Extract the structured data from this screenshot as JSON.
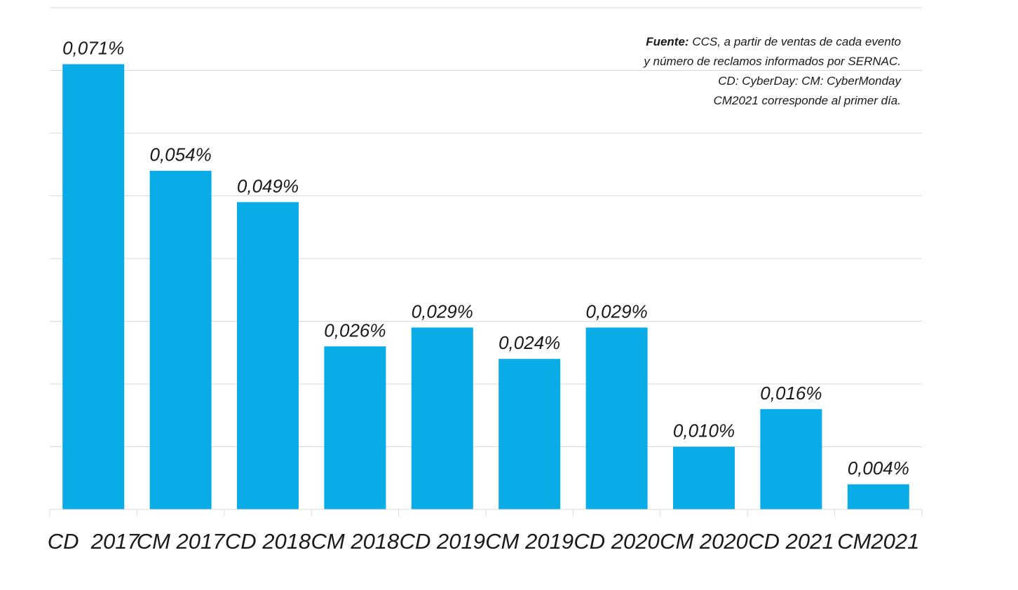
{
  "chart_data": {
    "type": "bar",
    "categories": [
      "CD  2017",
      "CM 2017",
      "CD 2018",
      "CM 2018",
      "CD 2019",
      "CM 2019",
      "CD 2020",
      "CM 2020",
      "CD 2021",
      "CM2021"
    ],
    "values": [
      0.071,
      0.054,
      0.049,
      0.026,
      0.029,
      0.024,
      0.029,
      0.01,
      0.016,
      0.004
    ],
    "data_labels": [
      "0,071%",
      "0,054%",
      "0,049%",
      "0,026%",
      "0,029%",
      "0,024%",
      "0,029%",
      "0,010%",
      "0,016%",
      "0,004%"
    ],
    "title": "",
    "xlabel": "",
    "ylabel": "",
    "ylim": [
      0,
      0.08
    ],
    "grid": true,
    "legend": "none",
    "bar_color": "#0aace8",
    "grid_color": "#d9d9d9",
    "annotation": {
      "line1_bold": "Fuente:",
      "line1_rest": " CCS, a partir de ventas de cada evento",
      "line2": "y  número de reclamos informados por SERNAC.",
      "line3": "CD: CyberDay: CM: CyberMonday",
      "line4": "CM2021 corresponde al primer día."
    }
  }
}
